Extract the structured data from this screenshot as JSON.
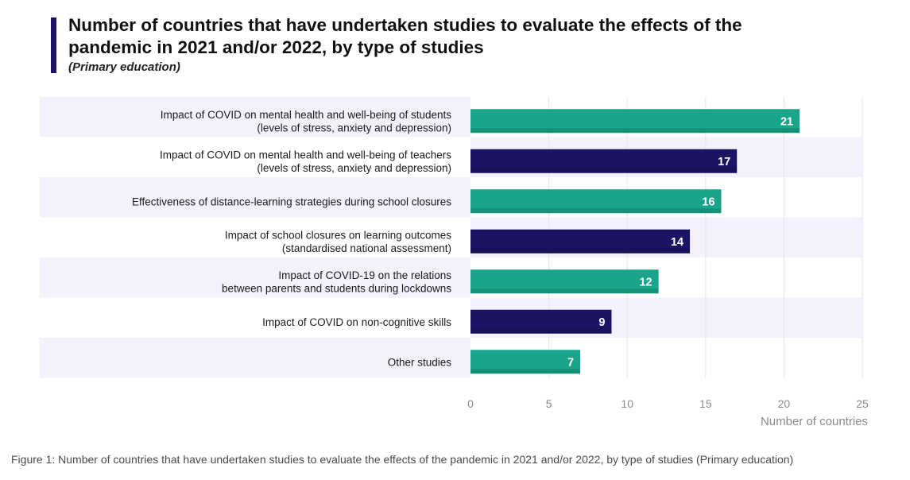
{
  "chart_data": {
    "type": "bar",
    "orientation": "horizontal",
    "title": "Number of countries that have undertaken studies to evaluate the effects of the pandemic in 2021 and/or 2022, by type of studies",
    "subtitle": "(Primary education)",
    "categories": [
      [
        "Impact of COVID on mental health and well-being of students",
        "(levels of stress, anxiety and depression)"
      ],
      [
        "Impact of COVID on mental health and well-being of teachers",
        "(levels of stress, anxiety and depression)"
      ],
      [
        "Effectiveness of distance-learning strategies during school closures"
      ],
      [
        "Impact of school closures on learning outcomes",
        "(standardised national assessment)"
      ],
      [
        "Impact of COVID-19 on the relations",
        "between parents and students during lockdowns"
      ],
      [
        "Impact of COVID on non-cognitive skills"
      ],
      [
        "Other studies"
      ]
    ],
    "values": [
      21,
      17,
      16,
      14,
      12,
      9,
      7
    ],
    "bar_colors": [
      "#1aa58a",
      "#1b1464",
      "#1aa58a",
      "#1b1464",
      "#1aa58a",
      "#1b1464",
      "#1aa58a"
    ],
    "xlim": [
      0,
      25
    ],
    "xticks": [
      "0",
      "5",
      "10",
      "15",
      "20",
      "25"
    ],
    "xlabel": "Number of countries",
    "ylabel": "",
    "grid": true,
    "band_color": "#f3f1fb"
  },
  "caption": "Figure 1: Number of countries that have undertaken studies to evaluate the effects of the pandemic in 2021 and/or 2022, by type of studies (Primary education)"
}
